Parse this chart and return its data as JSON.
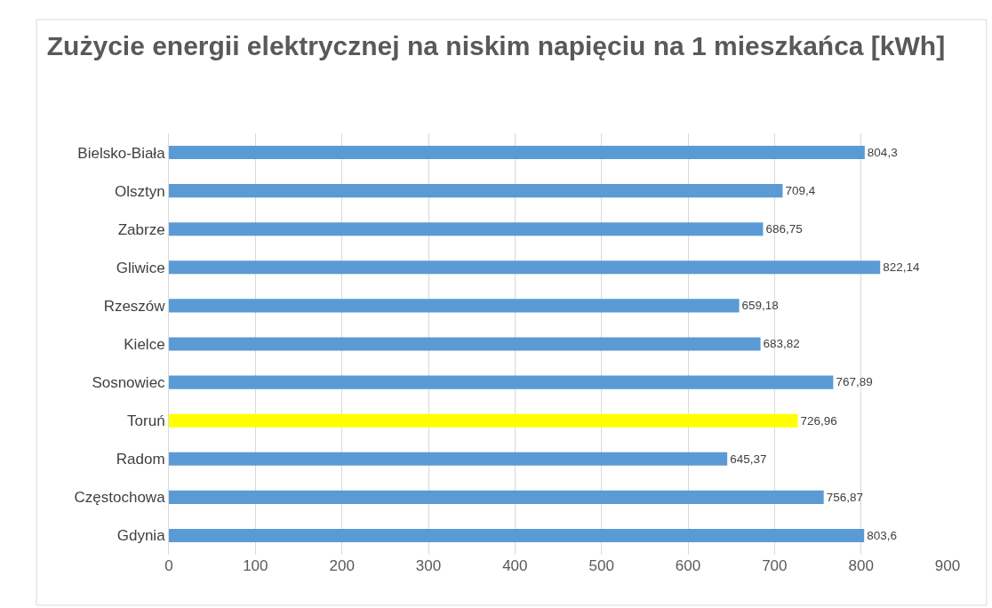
{
  "chart_data": {
    "type": "bar",
    "orientation": "horizontal",
    "title": "Zużycie energii elektrycznej na niskim napięciu na 1 mieszkańca [kWh]",
    "categories": [
      "Bielsko-Biała",
      "Olsztyn",
      "Zabrze",
      "Gliwice",
      "Rzeszów",
      "Kielce",
      "Sosnowiec",
      "Toruń",
      "Radom",
      "Częstochowa",
      "Gdynia"
    ],
    "values": [
      804.3,
      709.4,
      686.75,
      822.14,
      659.18,
      683.82,
      767.89,
      726.96,
      645.37,
      756.87,
      803.6
    ],
    "value_labels": [
      "804,3",
      "709,4",
      "686,75",
      "822,14",
      "659,18",
      "683,82",
      "767,89",
      "726,96",
      "645,37",
      "756,87",
      "803,6"
    ],
    "colors": [
      "#5b9bd5",
      "#5b9bd5",
      "#5b9bd5",
      "#5b9bd5",
      "#5b9bd5",
      "#5b9bd5",
      "#5b9bd5",
      "#ffff00",
      "#5b9bd5",
      "#5b9bd5",
      "#5b9bd5"
    ],
    "xlim": [
      0,
      900
    ],
    "xticks": [
      0,
      100,
      200,
      300,
      400,
      500,
      600,
      700,
      800,
      900
    ],
    "grid": "x",
    "legend": false
  }
}
